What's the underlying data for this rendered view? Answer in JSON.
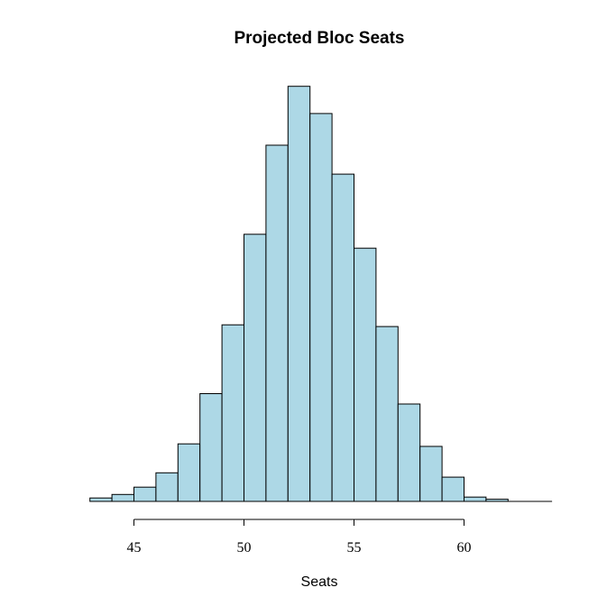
{
  "chart_data": {
    "type": "bar",
    "subtype": "histogram",
    "title": "Projected Bloc Seats",
    "xlabel": "Seats",
    "ylabel": "",
    "xlim": [
      43,
      64
    ],
    "bin_width": 1,
    "bins": [
      {
        "start": 43,
        "end": 44,
        "value": 0.8
      },
      {
        "start": 44,
        "end": 45,
        "value": 1.6
      },
      {
        "start": 45,
        "end": 46,
        "value": 3.3
      },
      {
        "start": 46,
        "end": 47,
        "value": 6.6
      },
      {
        "start": 47,
        "end": 48,
        "value": 13.3
      },
      {
        "start": 48,
        "end": 49,
        "value": 24.9
      },
      {
        "start": 49,
        "end": 50,
        "value": 40.8
      },
      {
        "start": 50,
        "end": 51,
        "value": 61.7
      },
      {
        "start": 51,
        "end": 52,
        "value": 82.3
      },
      {
        "start": 52,
        "end": 53,
        "value": 95.9
      },
      {
        "start": 53,
        "end": 54,
        "value": 89.6
      },
      {
        "start": 54,
        "end": 55,
        "value": 75.6
      },
      {
        "start": 55,
        "end": 56,
        "value": 58.5
      },
      {
        "start": 56,
        "end": 57,
        "value": 40.4
      },
      {
        "start": 57,
        "end": 58,
        "value": 22.5
      },
      {
        "start": 58,
        "end": 59,
        "value": 12.7
      },
      {
        "start": 59,
        "end": 60,
        "value": 5.6
      },
      {
        "start": 60,
        "end": 61,
        "value": 1.0
      },
      {
        "start": 61,
        "end": 62,
        "value": 0.5
      }
    ],
    "x_ticks": [
      45,
      50,
      55,
      60
    ],
    "x_tick_labels": [
      "45",
      "50",
      "55",
      "60"
    ],
    "y_axis_shown": false,
    "grid": false,
    "legend": "none",
    "colors": {
      "bar_fill": "#add8e6",
      "bar_stroke": "#000000",
      "axis": "#000000",
      "background": "#ffffff"
    }
  }
}
